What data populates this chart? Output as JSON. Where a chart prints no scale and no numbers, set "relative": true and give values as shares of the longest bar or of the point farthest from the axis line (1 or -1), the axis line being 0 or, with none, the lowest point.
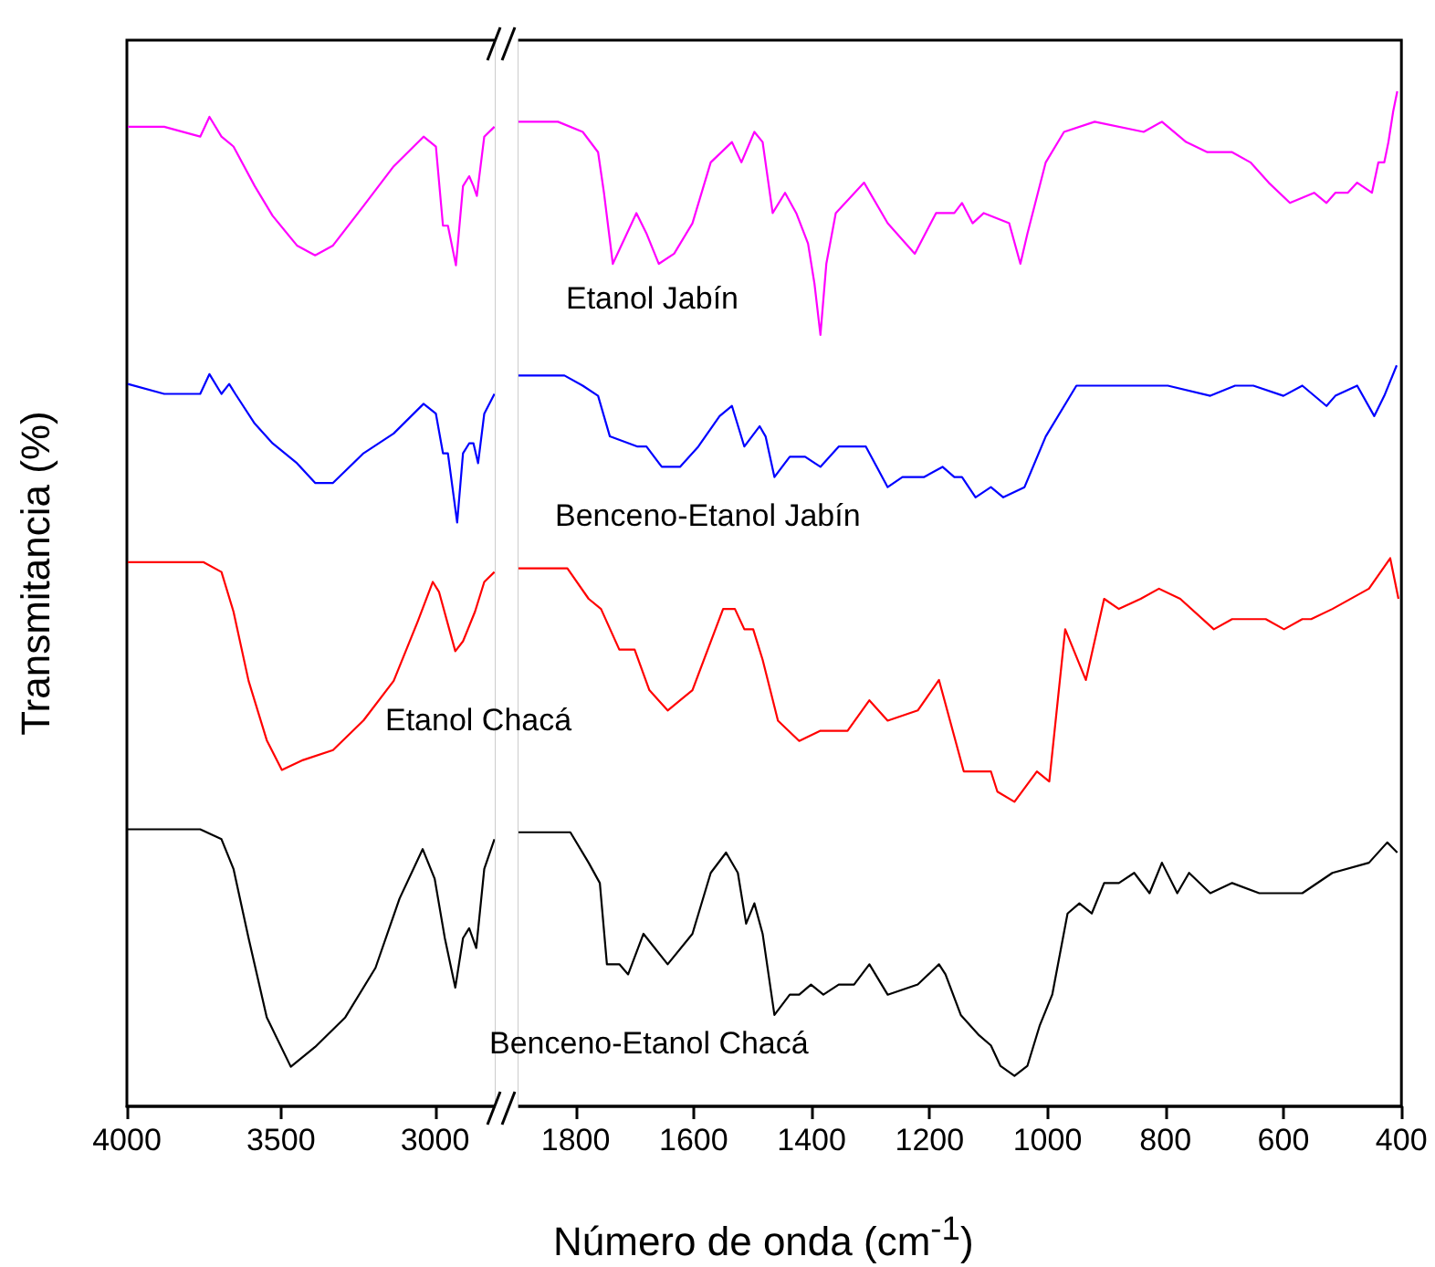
{
  "chart_data": [
    {
      "type": "line",
      "relative": true,
      "ylabel": "Transmitancia (%)",
      "xlim": [
        4000,
        2800
      ],
      "xticks": [
        4000,
        3500,
        3000
      ],
      "grid": false,
      "series": [
        {
          "color": "#ff00ff",
          "x": [
            3997,
            3879,
            3762,
            3732,
            3693,
            3654,
            3585,
            3527,
            3448,
            3389,
            3331,
            3232,
            3134,
            3037,
            2997,
            2974,
            2958,
            2932,
            2909,
            2889,
            2875,
            2864,
            2840,
            2807
          ],
          "values": [
            0.99,
            0.99,
            0.98,
            1.0,
            0.98,
            0.97,
            0.93,
            0.9,
            0.87,
            0.86,
            0.87,
            0.91,
            0.95,
            0.98,
            0.97,
            0.89,
            0.89,
            0.85,
            0.93,
            0.94,
            0.93,
            0.92,
            0.98,
            0.99
          ]
        },
        {
          "color": "#0000ff",
          "x": [
            3997,
            3879,
            3762,
            3732,
            3693,
            3668,
            3648,
            3585,
            3527,
            3448,
            3389,
            3331,
            3232,
            3134,
            3037,
            2997,
            2974,
            2958,
            2928,
            2909,
            2889,
            2875,
            2860,
            2840,
            2807
          ],
          "values": [
            0.73,
            0.72,
            0.72,
            0.74,
            0.72,
            0.73,
            0.72,
            0.69,
            0.67,
            0.65,
            0.63,
            0.63,
            0.66,
            0.68,
            0.71,
            0.7,
            0.66,
            0.66,
            0.59,
            0.66,
            0.67,
            0.67,
            0.65,
            0.7,
            0.72
          ]
        },
        {
          "color": "#ff0000",
          "x": [
            3997,
            3879,
            3752,
            3693,
            3654,
            3605,
            3546,
            3497,
            3428,
            3331,
            3232,
            3134,
            3056,
            3007,
            2987,
            2934,
            2909,
            2870,
            2840,
            2807
          ],
          "values": [
            0.55,
            0.55,
            0.55,
            0.54,
            0.5,
            0.43,
            0.37,
            0.34,
            0.35,
            0.36,
            0.39,
            0.43,
            0.49,
            0.53,
            0.52,
            0.46,
            0.47,
            0.5,
            0.53,
            0.54
          ]
        },
        {
          "color": "#000000",
          "x": [
            3997,
            3879,
            3762,
            3693,
            3654,
            3605,
            3546,
            3468,
            3389,
            3291,
            3193,
            3115,
            3040,
            3001,
            2968,
            2934,
            2909,
            2889,
            2866,
            2840,
            2807
          ],
          "values": [
            0.28,
            0.28,
            0.28,
            0.27,
            0.24,
            0.17,
            0.09,
            0.04,
            0.06,
            0.09,
            0.14,
            0.21,
            0.26,
            0.23,
            0.17,
            0.12,
            0.17,
            0.18,
            0.16,
            0.24,
            0.27
          ]
        }
      ]
    },
    {
      "type": "line",
      "relative": true,
      "xlabel": "Número de onda (cm$^{-1}$)",
      "xlim": [
        1900,
        400
      ],
      "xticks": [
        1800,
        1600,
        1400,
        1200,
        1000,
        800,
        600,
        400
      ],
      "grid": false,
      "series": [
        {
          "name": "Etanol Jabín",
          "color": "#ff00ff",
          "x": [
            1897,
            1830,
            1788,
            1762,
            1752,
            1737,
            1721,
            1697,
            1680,
            1659,
            1633,
            1602,
            1571,
            1535,
            1519,
            1497,
            1483,
            1466,
            1445,
            1426,
            1406,
            1395,
            1385,
            1375,
            1359,
            1311,
            1271,
            1225,
            1189,
            1158,
            1145,
            1127,
            1108,
            1065,
            1046,
            1034,
            1003,
            972,
            920,
            837,
            806,
            765,
            729,
            703,
            687,
            656,
            625,
            589,
            548,
            527,
            512,
            491,
            475,
            450,
            439,
            429,
            422,
            414,
            407
          ],
          "values": [
            0.97,
            0.97,
            0.96,
            0.94,
            0.9,
            0.83,
            0.85,
            0.88,
            0.86,
            0.83,
            0.84,
            0.87,
            0.93,
            0.95,
            0.93,
            0.96,
            0.95,
            0.88,
            0.9,
            0.88,
            0.85,
            0.81,
            0.76,
            0.83,
            0.88,
            0.91,
            0.87,
            0.84,
            0.88,
            0.88,
            0.89,
            0.87,
            0.88,
            0.87,
            0.83,
            0.86,
            0.93,
            0.96,
            0.97,
            0.96,
            0.97,
            0.95,
            0.94,
            0.94,
            0.94,
            0.93,
            0.91,
            0.89,
            0.9,
            0.89,
            0.9,
            0.9,
            0.91,
            0.9,
            0.93,
            0.93,
            0.95,
            0.98,
            1.0
          ]
        },
        {
          "name": "Benceno-Etanol Jabín",
          "color": "#0000ff",
          "x": [
            1897,
            1819,
            1788,
            1762,
            1742,
            1695,
            1680,
            1654,
            1623,
            1592,
            1556,
            1535,
            1514,
            1488,
            1478,
            1463,
            1437,
            1411,
            1385,
            1354,
            1308,
            1271,
            1246,
            1209,
            1178,
            1158,
            1145,
            1122,
            1096,
            1075,
            1039,
            1003,
            951,
            920,
            837,
            796,
            724,
            682,
            651,
            600,
            568,
            527,
            512,
            475,
            446,
            429,
            408
          ],
          "values": [
            0.72,
            0.72,
            0.71,
            0.7,
            0.66,
            0.65,
            0.65,
            0.63,
            0.63,
            0.65,
            0.68,
            0.69,
            0.65,
            0.67,
            0.66,
            0.62,
            0.64,
            0.64,
            0.63,
            0.65,
            0.65,
            0.61,
            0.62,
            0.62,
            0.63,
            0.62,
            0.62,
            0.6,
            0.61,
            0.6,
            0.61,
            0.66,
            0.71,
            0.71,
            0.71,
            0.71,
            0.7,
            0.71,
            0.71,
            0.7,
            0.71,
            0.69,
            0.7,
            0.71,
            0.68,
            0.7,
            0.73
          ]
        },
        {
          "name": "Etanol Chacá",
          "color": "#ff0000",
          "x": [
            1897,
            1814,
            1778,
            1757,
            1726,
            1700,
            1675,
            1644,
            1602,
            1550,
            1530,
            1514,
            1499,
            1483,
            1457,
            1421,
            1385,
            1339,
            1302,
            1271,
            1220,
            1184,
            1142,
            1116,
            1096,
            1085,
            1056,
            1018,
            997,
            970,
            935,
            904,
            879,
            842,
            811,
            775,
            718,
            687,
            630,
            599,
            568,
            553,
            517,
            455,
            419,
            405
          ],
          "values": [
            0.53,
            0.53,
            0.5,
            0.49,
            0.45,
            0.45,
            0.41,
            0.39,
            0.41,
            0.49,
            0.49,
            0.47,
            0.47,
            0.44,
            0.38,
            0.36,
            0.37,
            0.37,
            0.4,
            0.38,
            0.39,
            0.42,
            0.33,
            0.33,
            0.33,
            0.31,
            0.3,
            0.33,
            0.32,
            0.47,
            0.42,
            0.5,
            0.49,
            0.5,
            0.51,
            0.5,
            0.47,
            0.48,
            0.48,
            0.47,
            0.48,
            0.48,
            0.49,
            0.51,
            0.54,
            0.5
          ]
        },
        {
          "name": "Benceno-Etanol Chacá",
          "color": "#000000",
          "x": [
            1897,
            1809,
            1778,
            1759,
            1747,
            1726,
            1711,
            1685,
            1644,
            1602,
            1571,
            1545,
            1525,
            1511,
            1497,
            1483,
            1463,
            1437,
            1421,
            1401,
            1380,
            1354,
            1328,
            1302,
            1271,
            1220,
            1184,
            1173,
            1147,
            1116,
            1096,
            1080,
            1056,
            1034,
            1013,
            992,
            966,
            946,
            925,
            904,
            879,
            853,
            827,
            806,
            780,
            760,
            724,
            687,
            641,
            599,
            568,
            517,
            455,
            424,
            407
          ],
          "values": [
            0.27,
            0.27,
            0.24,
            0.22,
            0.14,
            0.14,
            0.13,
            0.17,
            0.14,
            0.17,
            0.23,
            0.25,
            0.23,
            0.18,
            0.2,
            0.17,
            0.09,
            0.11,
            0.11,
            0.12,
            0.11,
            0.12,
            0.12,
            0.14,
            0.11,
            0.12,
            0.14,
            0.13,
            0.09,
            0.07,
            0.06,
            0.04,
            0.03,
            0.04,
            0.08,
            0.11,
            0.19,
            0.2,
            0.19,
            0.22,
            0.22,
            0.23,
            0.21,
            0.24,
            0.21,
            0.23,
            0.21,
            0.22,
            0.21,
            0.21,
            0.21,
            0.23,
            0.24,
            0.26,
            0.25
          ]
        }
      ]
    }
  ]
}
